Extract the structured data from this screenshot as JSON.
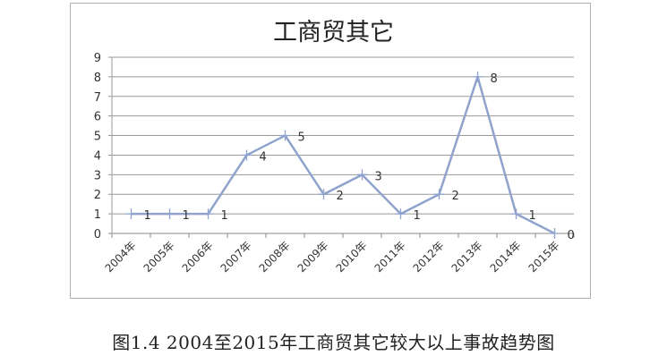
{
  "caption": "图1.4 2004至2015年工商贸其它较大以上事故趋势图",
  "chart_data": {
    "type": "line",
    "title": "工商贸其它",
    "categories": [
      "2004年",
      "2005年",
      "2006年",
      "2007年",
      "2008年",
      "2009年",
      "2010年",
      "2011年",
      "2012年",
      "2013年",
      "2014年",
      "2015年"
    ],
    "values": [
      1,
      1,
      1,
      4,
      5,
      2,
      3,
      1,
      2,
      8,
      1,
      0
    ],
    "ylim": [
      0,
      9
    ],
    "yticks": [
      0,
      1,
      2,
      3,
      4,
      5,
      6,
      7,
      8,
      9
    ],
    "grid": true,
    "data_labels": true,
    "line_color": "#8fa3cc"
  }
}
